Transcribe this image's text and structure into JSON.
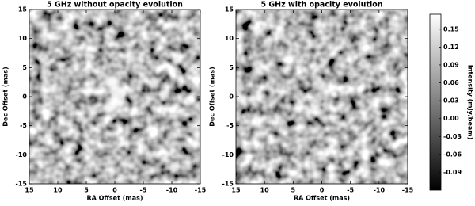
{
  "chart_data": [
    {
      "type": "image",
      "title": "5 GHz without opacity evolution",
      "xlabel": "RA Offset (mas)",
      "ylabel": "Dec Offset (mas)",
      "xlim": [
        15,
        -15
      ],
      "ylim": [
        -15,
        15
      ],
      "xticks": [
        15,
        10,
        5,
        0,
        -5,
        -10,
        -15
      ],
      "yticks": [
        -15,
        -10,
        -5,
        0,
        5,
        10,
        15
      ]
    },
    {
      "type": "image",
      "title": "5 GHz with opacity evolution",
      "xlabel": "RA Offset (mas)",
      "ylabel": "Dec Offset (mas)",
      "xlim": [
        15,
        -15
      ],
      "ylim": [
        -15,
        15
      ],
      "xticks": [
        15,
        10,
        5,
        0,
        -5,
        -10,
        -15
      ],
      "yticks": [
        -15,
        -10,
        -5,
        0,
        5,
        10,
        15
      ]
    },
    {
      "type": "colorbar",
      "label": "Intensity (mJy/beam)",
      "ylim": [
        -0.12,
        0.175
      ],
      "yticks": [
        0.15,
        0.12,
        0.09,
        0.06,
        0.03,
        {
          "value": 0,
          "label": "0.00"
        },
        -0.03,
        -0.06,
        -0.09
      ]
    }
  ]
}
